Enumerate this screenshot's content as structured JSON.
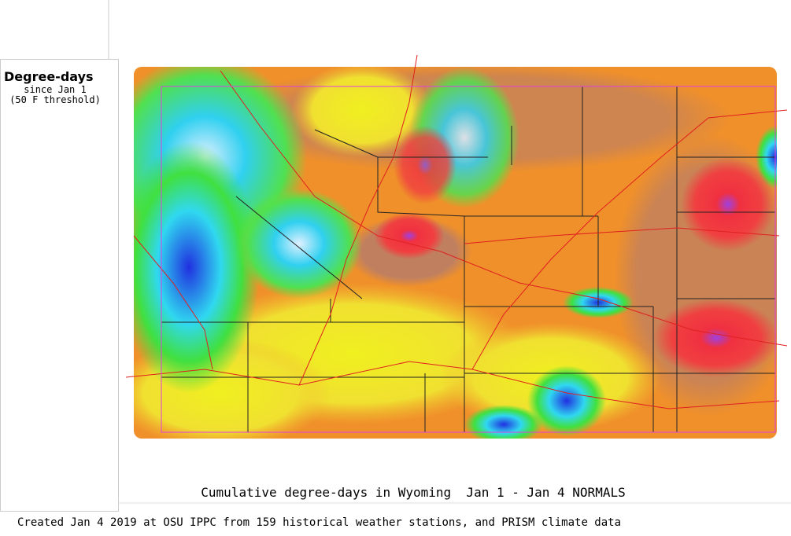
{
  "legend": {
    "title": "Degree-days",
    "subtitle": "since Jan 1",
    "threshold": "(50 F threshold)"
  },
  "map": {
    "title": "Cumulative degree-days in Wyoming  Jan 1 - Jan 4 NORMALS"
  },
  "footer": {
    "credit": "Created Jan 4 2019 at OSU IPPC from 159 historical weather stations, and PRISM climate data"
  }
}
